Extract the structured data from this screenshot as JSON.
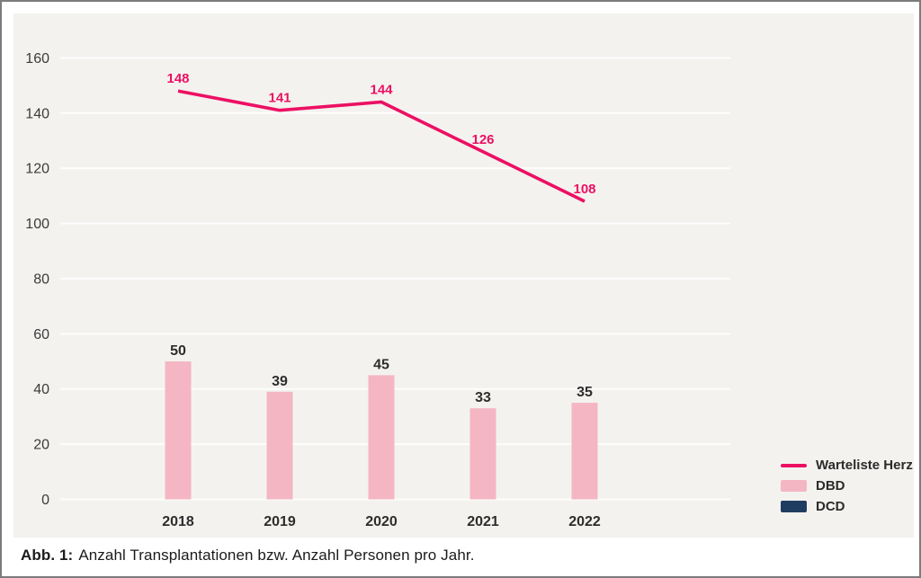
{
  "caption": {
    "prefix": "Abb. 1:",
    "text": "Anzahl Transplantationen bzw. Anzahl Personen pro Jahr."
  },
  "chart_data": {
    "type": "combo",
    "title": "",
    "xlabel": "",
    "ylabel": "",
    "categories": [
      "2018",
      "2019",
      "2020",
      "2021",
      "2022"
    ],
    "series": [
      {
        "name": "Warteliste Herz",
        "type": "line",
        "color": "#ec1063",
        "values": [
          148,
          141,
          144,
          126,
          108
        ]
      },
      {
        "name": "DBD",
        "type": "bar",
        "color": "#f4b6c3",
        "values": [
          50,
          39,
          45,
          33,
          35
        ]
      },
      {
        "name": "DCD",
        "type": "bar",
        "color": "#1f3d60",
        "values": [
          0,
          0,
          0,
          0,
          0
        ]
      }
    ],
    "ylim": [
      0,
      160
    ],
    "ytick_step": 20,
    "grid": true,
    "legend_position": "right-bottom"
  },
  "colors": {
    "panel_bg": "#f4f2ef",
    "grid": "#ffffff",
    "axis_text": "#3b3b3b",
    "label_text": "#2d2d2d",
    "border": "#7c7c7c"
  }
}
